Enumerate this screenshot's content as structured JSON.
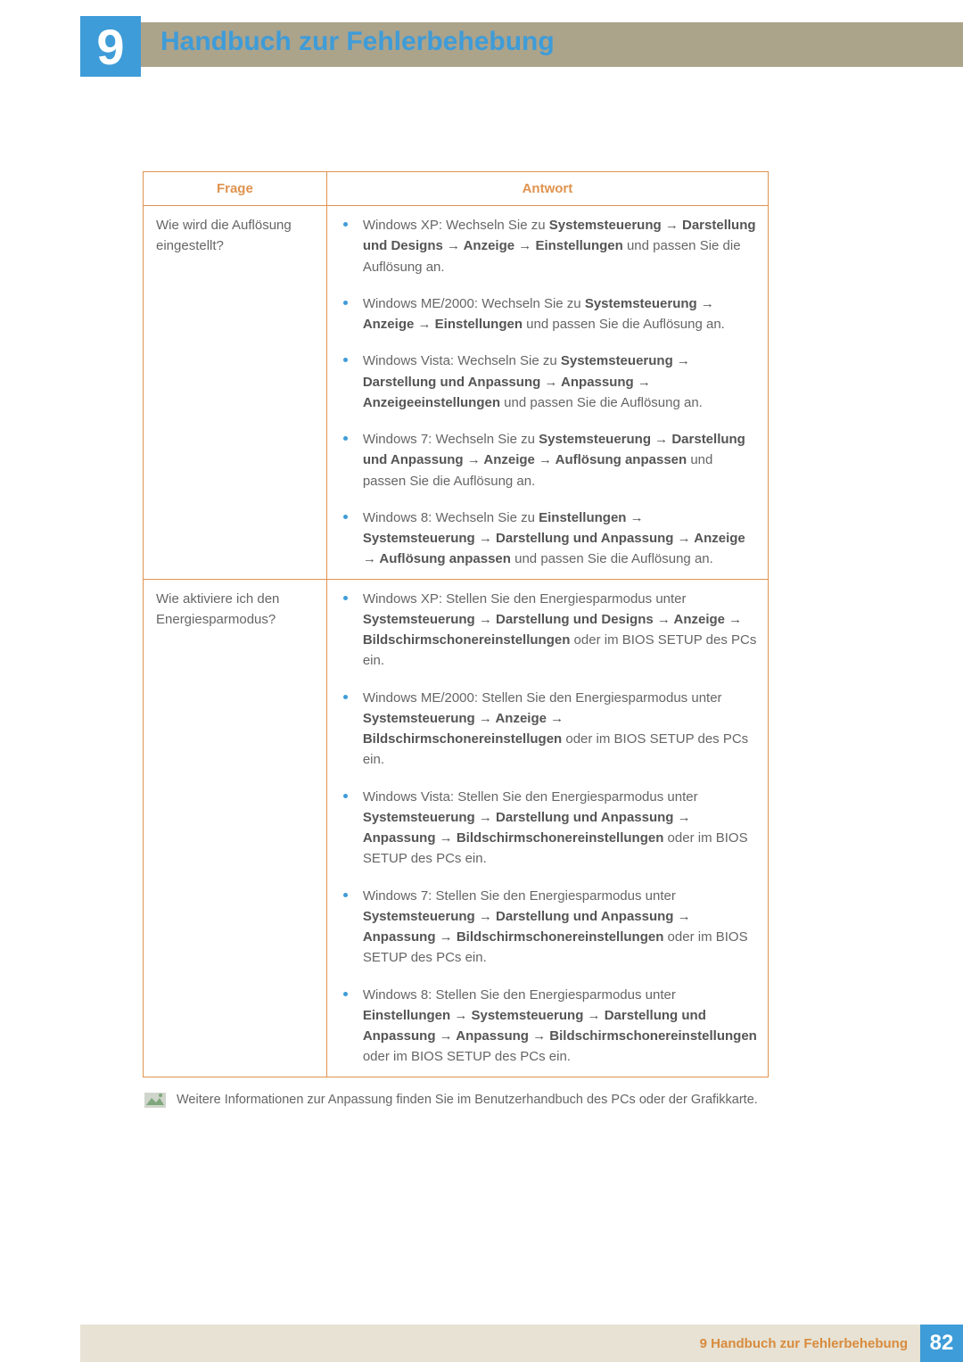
{
  "chapter_number": "9",
  "page_title": "Handbuch zur Fehlerbehebung",
  "table": {
    "headers": {
      "q": "Frage",
      "a": "Antwort"
    },
    "rows": [
      {
        "q": "Wie wird die Auflösung eingestellt?",
        "a": [
          {
            "pre": "Windows XP: Wechseln Sie zu ",
            "bold": "Systemsteuerung → Darstellung und Designs → Anzeige → Einstellungen",
            "post": " und passen Sie die Auflösung an."
          },
          {
            "pre": "Windows ME/2000: Wechseln Sie zu ",
            "bold": "Systemsteuerung → Anzeige → Einstellungen",
            "post": " und passen Sie die Auflösung an."
          },
          {
            "pre": "Windows Vista: Wechseln Sie zu ",
            "bold": "Systemsteuerung → Darstellung und Anpassung → Anpassung → Anzeigeeinstellungen",
            "post": " und passen Sie die Auflösung an."
          },
          {
            "pre": "Windows 7: Wechseln Sie zu ",
            "bold": "Systemsteuerung → Darstellung und Anpassung → Anzeige → Auflösung anpassen",
            "post": " und passen Sie die Auflösung an."
          },
          {
            "pre": "Windows 8: Wechseln Sie zu ",
            "bold": "Einstellungen → Systemsteuerung → Darstellung und Anpassung → Anzeige → Auflösung anpassen",
            "post": " und passen Sie die Auflösung an."
          }
        ]
      },
      {
        "q": "Wie aktiviere ich den Energiesparmodus?",
        "a": [
          {
            "pre": "Windows XP: Stellen Sie den Energiesparmodus unter ",
            "bold": "Systemsteuerung → Darstellung und Designs → Anzeige → Bildschirmschonereinstellungen",
            "post": " oder im BIOS SETUP des PCs ein."
          },
          {
            "pre": "Windows ME/2000: Stellen Sie den Energiesparmodus unter ",
            "bold": "Systemsteuerung → Anzeige → Bildschirmschonereinstellugen",
            "post": " oder im BIOS SETUP des PCs ein."
          },
          {
            "pre": "Windows Vista: Stellen Sie den Energiesparmodus unter ",
            "bold": "Systemsteuerung → Darstellung und Anpassung → Anpassung → Bildschirmschonereinstellungen",
            "post": " oder im BIOS SETUP des PCs ein."
          },
          {
            "pre": "Windows 7: Stellen Sie den Energiesparmodus unter ",
            "bold": "Systemsteuerung → Darstellung und Anpassung → Anpassung → Bildschirmschonereinstellungen",
            "post": " oder im BIOS SETUP des PCs ein."
          },
          {
            "pre": "Windows 8: Stellen Sie den Energiesparmodus unter ",
            "bold": "Einstellungen → Systemsteuerung → Darstellung und Anpassung → Anpassung → Bildschirmschonereinstellungen",
            "post": " oder im BIOS SETUP des PCs ein."
          }
        ]
      }
    ]
  },
  "note_text": "Weitere Informationen zur Anpassung finden Sie im Benutzerhandbuch des PCs oder der Grafikkarte.",
  "footer_label": "9 Handbuch zur Fehlerbehebung",
  "page_number": "82",
  "colors": {
    "header_bar": "#aca38b",
    "brand_blue": "#3e9cd8",
    "table_border": "#e0934f",
    "footer_stripe": "#e7e2d3",
    "footer_label": "#d88b3e",
    "body_text": "#666666"
  }
}
